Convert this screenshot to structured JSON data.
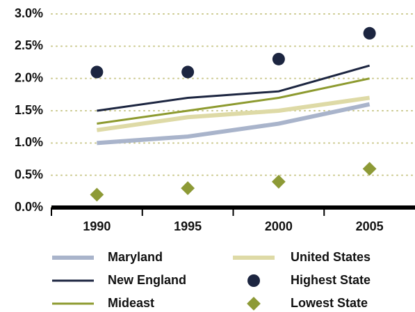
{
  "chart_data": {
    "type": "line",
    "categories": [
      "1990",
      "1995",
      "2000",
      "2005"
    ],
    "ylim": [
      0,
      3
    ],
    "yticks": [
      {
        "value": 0,
        "label": "0.0%"
      },
      {
        "value": 0.5,
        "label": "0.5%"
      },
      {
        "value": 1,
        "label": "1.0%"
      },
      {
        "value": 1.5,
        "label": "1.5%"
      },
      {
        "value": 2,
        "label": "2.0%"
      },
      {
        "value": 2.5,
        "label": "2.5%"
      },
      {
        "value": 3,
        "label": "3.0%"
      }
    ],
    "grid": true,
    "series": [
      {
        "name": "Maryland",
        "color": "#a9b4cb",
        "type": "line",
        "width": 6,
        "values": [
          1.0,
          1.1,
          1.3,
          1.6
        ]
      },
      {
        "name": "United States",
        "color": "#dedaa6",
        "type": "line",
        "width": 6,
        "values": [
          1.2,
          1.4,
          1.5,
          1.7
        ]
      },
      {
        "name": "New England",
        "color": "#1c2540",
        "type": "line",
        "width": 3,
        "values": [
          1.5,
          1.7,
          1.8,
          2.2
        ]
      },
      {
        "name": "Highest State",
        "color": "#1c2540",
        "type": "scatter",
        "marker": "circle",
        "values": [
          2.1,
          2.1,
          2.3,
          2.7
        ]
      },
      {
        "name": "Mideast",
        "color": "#8d9a2f",
        "type": "line",
        "width": 3,
        "values": [
          1.3,
          1.5,
          1.7,
          2.0
        ]
      },
      {
        "name": "Lowest State",
        "color": "#8d9a36",
        "type": "scatter",
        "marker": "diamond",
        "values": [
          0.2,
          0.3,
          0.4,
          0.6
        ]
      }
    ]
  }
}
